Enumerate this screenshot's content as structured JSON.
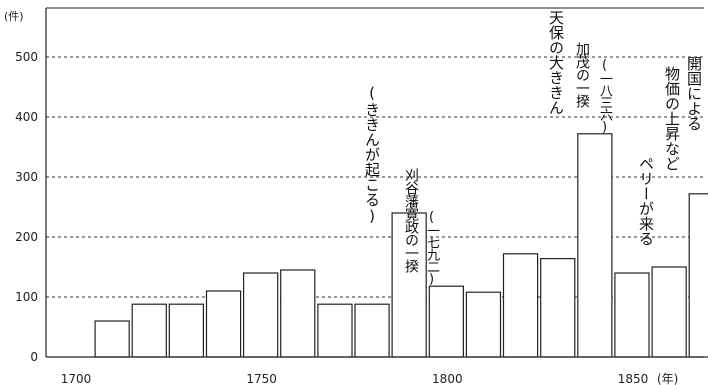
{
  "chart_data": {
    "type": "bar",
    "ylabel": "(件)",
    "xlabel_unit": "(年)",
    "ylim": [
      0,
      550
    ],
    "yticks": [
      0,
      100,
      200,
      300,
      400,
      500
    ],
    "xticks": [
      "1700",
      "1750",
      "1800",
      "1850"
    ],
    "xrange": [
      1700,
      1870
    ],
    "bin_years": 10,
    "grid": "horizontal-dashed",
    "bars": [
      {
        "start": 1705,
        "value": 60
      },
      {
        "start": 1715,
        "value": 88
      },
      {
        "start": 1725,
        "value": 88
      },
      {
        "start": 1735,
        "value": 110
      },
      {
        "start": 1745,
        "value": 140
      },
      {
        "start": 1755,
        "value": 145
      },
      {
        "start": 1765,
        "value": 88
      },
      {
        "start": 1775,
        "value": 88
      },
      {
        "start": 1785,
        "value": 240
      },
      {
        "start": 1795,
        "value": 118
      },
      {
        "start": 1805,
        "value": 108
      },
      {
        "start": 1815,
        "value": 172
      },
      {
        "start": 1825,
        "value": 164
      },
      {
        "start": 1835,
        "value": 372
      },
      {
        "start": 1845,
        "value": 140
      },
      {
        "start": 1855,
        "value": 150
      },
      {
        "start": 1865,
        "value": 272
      }
    ],
    "annotations": [
      "(ききんが起こる)",
      "刈谷藩寛政の一揆",
      "(一七九二)",
      "天保の大ききん",
      "加茂の一揆",
      "(一八三六)",
      "ペリーが来る",
      "開国による",
      "物価の上昇など"
    ]
  }
}
